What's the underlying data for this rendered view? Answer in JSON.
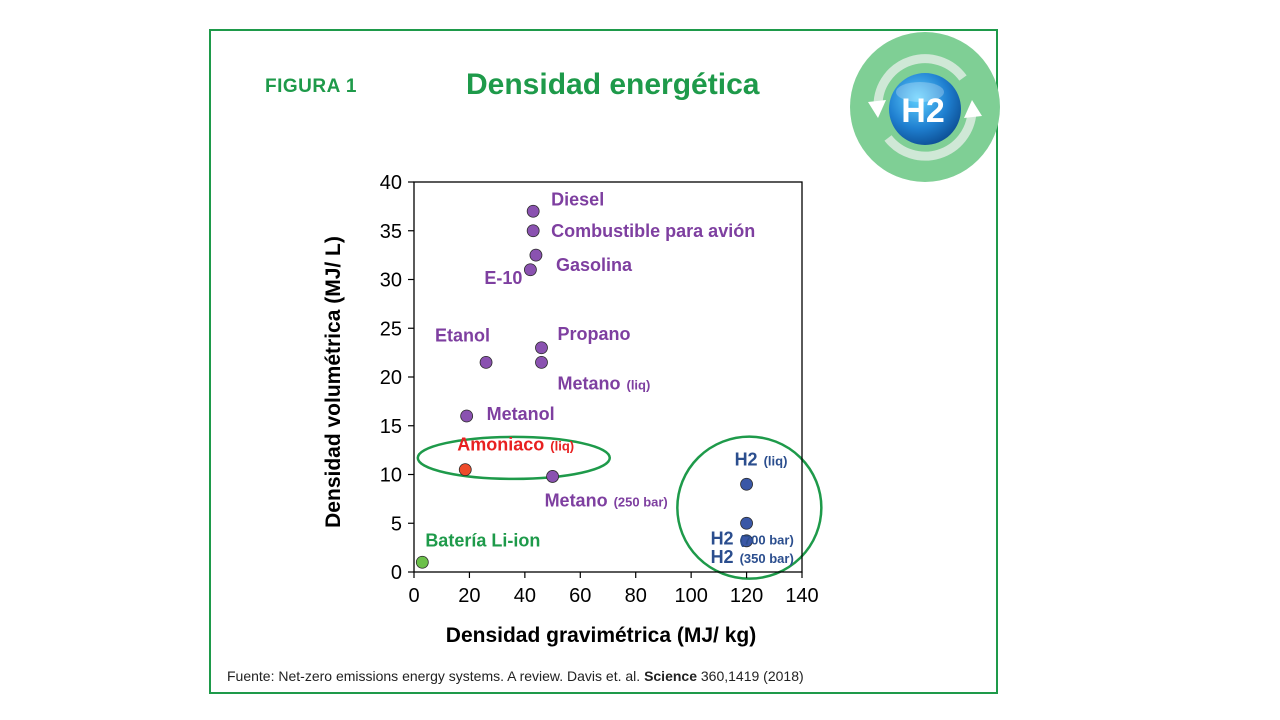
{
  "header": {
    "figure_label": "FIGURA 1",
    "title": "Densidad energética"
  },
  "logo": {
    "icon": "hydrogen-h2-icon",
    "text": "H2"
  },
  "source": {
    "prefix": "Fuente: Net-zero emissions energy systems. A review. Davis et. al. ",
    "journal": "Science",
    "suffix": " 360,1419 (2018)"
  },
  "colors": {
    "frame": "#1e9a4a",
    "purple": "#7e3fa0",
    "red": "#e82020",
    "green": "#1e9a4a",
    "navy": "#2b4e8e"
  },
  "chart_data": {
    "type": "scatter",
    "xlabel": "Densidad gravimétrica (MJ/ kg)",
    "ylabel": "Densidad volumétrica (MJ/ L)",
    "xlim": [
      0,
      140
    ],
    "ylim": [
      0,
      40
    ],
    "xticks": [
      0,
      20,
      40,
      60,
      80,
      100,
      120,
      140
    ],
    "yticks": [
      0,
      5,
      10,
      15,
      20,
      25,
      30,
      35,
      40
    ],
    "grid": false,
    "points": [
      {
        "label": "Diesel",
        "x": 43,
        "y": 37,
        "color": "purple"
      },
      {
        "label": "Combustible para avión",
        "x": 43,
        "y": 35,
        "color": "purple"
      },
      {
        "label": "Gasolina",
        "x": 44,
        "y": 32.5,
        "color": "purple"
      },
      {
        "label": "E-10",
        "x": 42,
        "y": 31,
        "color": "purple"
      },
      {
        "label": "Propano",
        "x": 46,
        "y": 23,
        "color": "purple"
      },
      {
        "label": "Etanol",
        "x": 26,
        "y": 21.5,
        "color": "purple"
      },
      {
        "label": "Metano",
        "sub": "(liq)",
        "x": 46,
        "y": 21.5,
        "color": "purple"
      },
      {
        "label": "Metanol",
        "x": 19,
        "y": 16,
        "color": "purple"
      },
      {
        "label": "Amoniaco",
        "sub": "(liq)",
        "x": 18.5,
        "y": 10.5,
        "color": "red"
      },
      {
        "label": "Metano",
        "sub": "(250 bar)",
        "x": 50,
        "y": 9.8,
        "color": "purple"
      },
      {
        "label": "Batería Li-ion",
        "x": 3,
        "y": 1,
        "color": "green"
      },
      {
        "label": "H2",
        "sub": "(liq)",
        "x": 120,
        "y": 9,
        "color": "navy"
      },
      {
        "label": "H2",
        "sub": "(700 bar)",
        "x": 120,
        "y": 5,
        "color": "navy"
      },
      {
        "label": "H2",
        "sub": "(350 bar)",
        "x": 120,
        "y": 3.2,
        "color": "navy"
      }
    ]
  }
}
